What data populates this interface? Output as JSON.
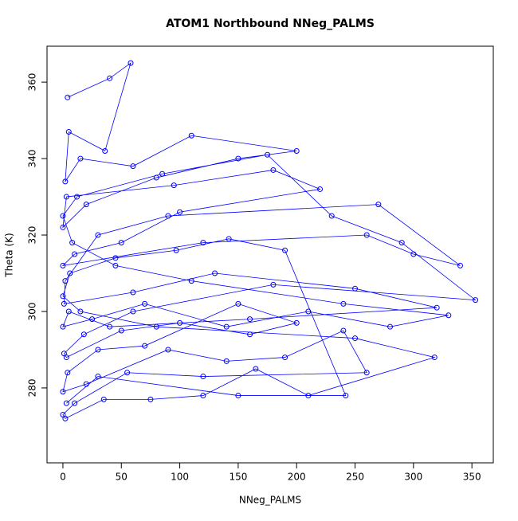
{
  "chart_data": {
    "type": "line",
    "title": "ATOM1 Northbound NNeg_PALMS",
    "xlabel": "NNeg_PALMS",
    "ylabel": "Theta (K)",
    "color": "#0000ff",
    "markers": true,
    "x": [
      4,
      40,
      58,
      36,
      5,
      2,
      15,
      60,
      110,
      200,
      150,
      80,
      20,
      0,
      3,
      95,
      180,
      220,
      100,
      50,
      10,
      0,
      120,
      260,
      300,
      340,
      270,
      90,
      30,
      2,
      1,
      60,
      130,
      250,
      320,
      160,
      40,
      5,
      0,
      25,
      70,
      140,
      210,
      280,
      330,
      240,
      110,
      45,
      8,
      0,
      12,
      85,
      175,
      230,
      290,
      353,
      180,
      60,
      18,
      1,
      3,
      50,
      100,
      160,
      200,
      150,
      70,
      30,
      4,
      0,
      20,
      90,
      140,
      190,
      240,
      260,
      120,
      55,
      10,
      0,
      2,
      35,
      75,
      120,
      165,
      210,
      318,
      250,
      80,
      15,
      0,
      6,
      45,
      97,
      142,
      190,
      242,
      150,
      30,
      3
    ],
    "values": [
      356,
      361,
      365,
      342,
      347,
      334,
      340,
      338,
      346,
      342,
      340,
      335,
      328,
      322,
      330,
      333,
      337,
      332,
      326,
      318,
      315,
      312,
      318,
      320,
      315,
      312,
      328,
      325,
      320,
      308,
      302,
      305,
      310,
      306,
      301,
      298,
      296,
      300,
      296,
      298,
      302,
      296,
      300,
      296,
      299,
      302,
      308,
      312,
      318,
      325,
      330,
      336,
      341,
      325,
      318,
      303,
      307,
      300,
      294,
      289,
      288,
      295,
      297,
      294,
      297,
      302,
      291,
      290,
      284,
      279,
      281,
      290,
      287,
      288,
      295,
      284,
      283,
      284,
      276,
      273,
      272,
      277,
      277,
      278,
      285,
      278,
      288,
      293,
      296,
      300,
      304,
      310,
      314,
      316,
      319,
      316,
      278,
      278,
      283,
      276
    ],
    "xlim": [
      -13.6,
      368.3
    ],
    "ylim": [
      260.4,
      369.4
    ],
    "xticks": [
      0,
      50,
      100,
      150,
      200,
      250,
      300,
      350
    ],
    "yticks": [
      280,
      300,
      320,
      340,
      360
    ]
  }
}
